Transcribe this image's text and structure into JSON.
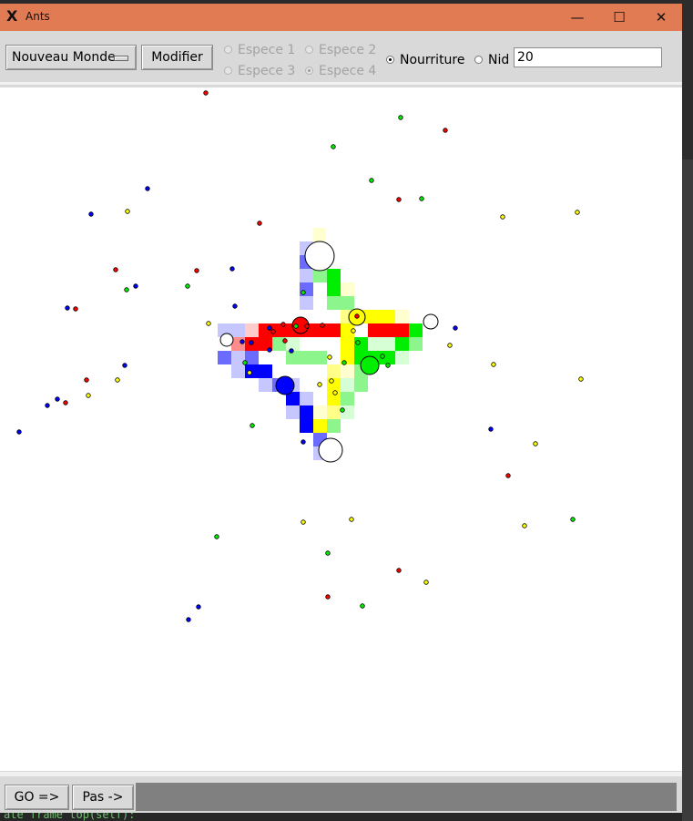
{
  "window": {
    "title": "Ants",
    "app_icon": "X",
    "controls": {
      "minimize": "—",
      "maximize": "☐",
      "close": "✕"
    }
  },
  "toolbar": {
    "world_menu": "Nouveau Monde",
    "modify_button": "Modifier",
    "species": [
      {
        "label": "Espece 1",
        "selected": false
      },
      {
        "label": "Espece 2",
        "selected": false
      },
      {
        "label": "Espece 3",
        "selected": false
      },
      {
        "label": "Espece 4",
        "selected": true
      }
    ],
    "modes": [
      {
        "label": "Nourriture",
        "selected": true
      },
      {
        "label": "Nid",
        "selected": false
      }
    ],
    "amount_value": "20"
  },
  "controls": {
    "go_button": "GO =>",
    "step_button": "Pas ->"
  },
  "background_code": "ate frame top(self):",
  "colors": {
    "title_bar": "#e07b53",
    "red": "#ff0000",
    "green": "#00ee00",
    "blue": "#0000ff",
    "yellow": "#ffff00"
  }
}
